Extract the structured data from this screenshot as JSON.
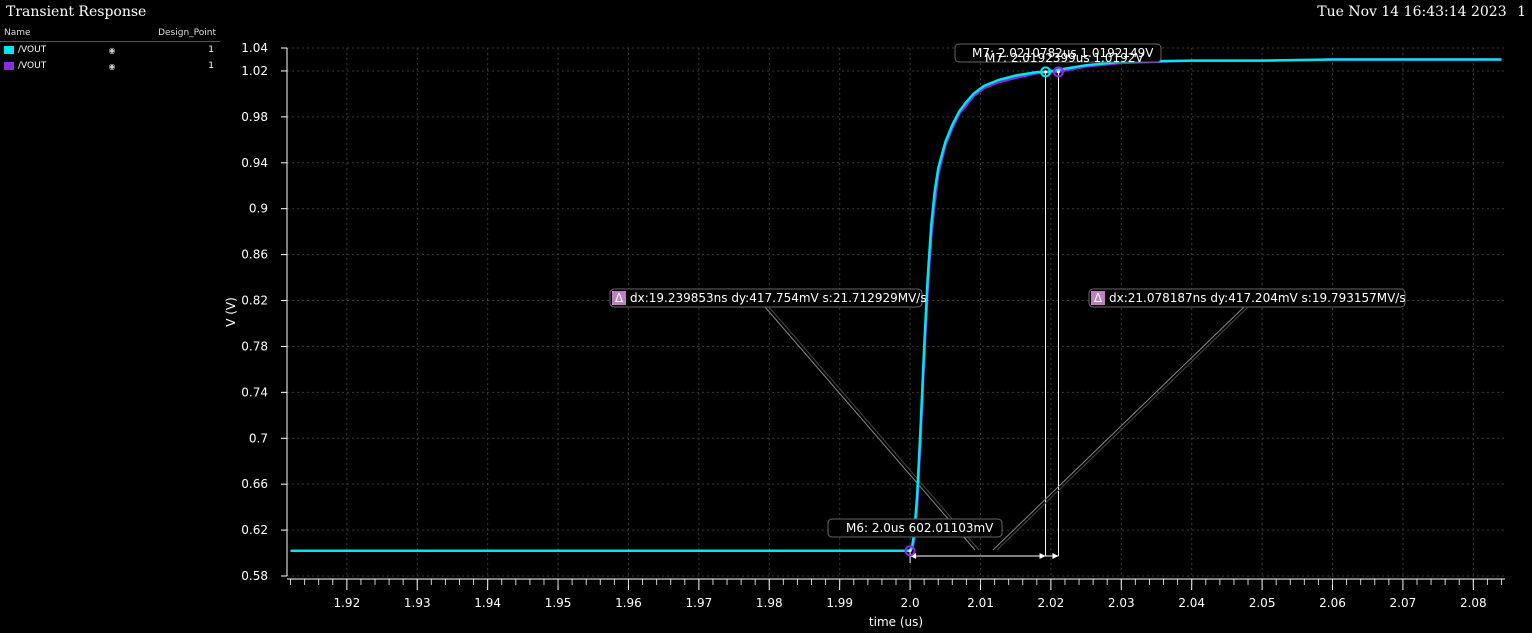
{
  "window": {
    "title": "Transient Response",
    "timestamp": "Tue Nov 14 16:43:14 2023",
    "page_number": "1"
  },
  "legend": {
    "header_name": "Name",
    "header_design_point": "Design_Point",
    "items": [
      {
        "name": "/VOUT",
        "design_point": "1",
        "color": "#00e5ee",
        "eye_icon": "eye-icon"
      },
      {
        "name": "/VOUT",
        "design_point": "1",
        "color": "#8a2be2",
        "eye_icon": "eye-icon"
      }
    ]
  },
  "chart_data": {
    "type": "line",
    "title": "Transient Response",
    "xlabel": "time (us)",
    "ylabel": "V (V)",
    "xlim": [
      1.9115,
      2.0845
    ],
    "ylim": [
      0.58,
      1.04
    ],
    "x_ticks": [
      "1.92",
      "1.93",
      "1.94",
      "1.95",
      "1.96",
      "1.97",
      "1.98",
      "1.99",
      "2.0",
      "2.01",
      "2.02",
      "2.03",
      "2.04",
      "2.05",
      "2.06",
      "2.07",
      "2.08"
    ],
    "x_tick_values": [
      1.92,
      1.93,
      1.94,
      1.95,
      1.96,
      1.97,
      1.98,
      1.99,
      2.0,
      2.01,
      2.02,
      2.03,
      2.04,
      2.05,
      2.06,
      2.07,
      2.08
    ],
    "y_ticks": [
      "1.04",
      "1.02",
      "0.98",
      "0.94",
      "0.9",
      "0.86",
      "0.82",
      "0.78",
      "0.74",
      "0.7",
      "0.66",
      "0.62",
      "0.58"
    ],
    "y_tick_values": [
      1.04,
      1.02,
      0.98,
      0.94,
      0.9,
      0.86,
      0.82,
      0.78,
      0.74,
      0.7,
      0.66,
      0.62,
      0.58
    ],
    "grid": true,
    "series": [
      {
        "name": "/VOUT",
        "color": "#8a2be2",
        "x": [
          1.912,
          1.99,
          1.9995,
          2.0,
          2.0003,
          2.0006,
          2.001,
          2.0015,
          2.002,
          2.0025,
          2.003,
          2.0035,
          2.004,
          2.005,
          2.006,
          2.007,
          2.008,
          2.009,
          2.0105,
          2.0125,
          2.015,
          2.018,
          2.0195,
          2.021,
          2.025,
          2.03,
          2.04,
          2.05,
          2.06,
          2.084
        ],
        "y": [
          0.602,
          0.602,
          0.602,
          0.602,
          0.604,
          0.612,
          0.64,
          0.7,
          0.77,
          0.83,
          0.875,
          0.905,
          0.93,
          0.955,
          0.97,
          0.983,
          0.99,
          0.998,
          1.005,
          1.01,
          1.014,
          1.018,
          1.019,
          1.0192,
          1.024,
          1.027,
          1.029,
          1.029,
          1.03,
          1.03
        ]
      },
      {
        "name": "/VOUT",
        "color": "#00e5ee",
        "x": [
          1.912,
          1.99,
          1.9995,
          2.0,
          2.0003,
          2.0006,
          2.001,
          2.0015,
          2.002,
          2.0025,
          2.003,
          2.0035,
          2.004,
          2.005,
          2.006,
          2.007,
          2.008,
          2.009,
          2.0105,
          2.0125,
          2.015,
          2.018,
          2.0195,
          2.021,
          2.025,
          2.03,
          2.04,
          2.05,
          2.06,
          2.084
        ],
        "y": [
          0.602,
          0.602,
          0.602,
          0.602,
          0.606,
          0.618,
          0.65,
          0.71,
          0.78,
          0.84,
          0.885,
          0.915,
          0.935,
          0.958,
          0.973,
          0.985,
          0.993,
          1.0,
          1.007,
          1.012,
          1.016,
          1.019,
          1.0192,
          1.021,
          1.025,
          1.028,
          1.029,
          1.029,
          1.03,
          1.03
        ]
      }
    ],
    "markers": [
      {
        "id": "M6",
        "x": 2.0,
        "y": 0.602,
        "color": "#8a2be2",
        "label": "M6: 2.0us 602.01103mV"
      },
      {
        "id": "M7",
        "x": 2.0210782,
        "y": 1.0192149,
        "color": "#8a2be2",
        "label": "M7: 2.0210782us 1.0192149V"
      },
      {
        "id": "M7-ghost",
        "x": 2.0192399,
        "y": 1.0192,
        "color": "#00e5ee",
        "label": "M7: 2.0192399us 1.0192V"
      }
    ],
    "deltas": [
      {
        "label": "dx:19.239853ns dy:417.754mV s:21.712929MV/s",
        "icon": "delta-icon",
        "x0": 2.0,
        "x1": 2.0192399
      },
      {
        "label": "dx:21.078187ns dy:417.204mV s:19.793157MV/s",
        "icon": "delta-icon",
        "x0": 2.0,
        "x1": 2.0210782
      }
    ]
  }
}
